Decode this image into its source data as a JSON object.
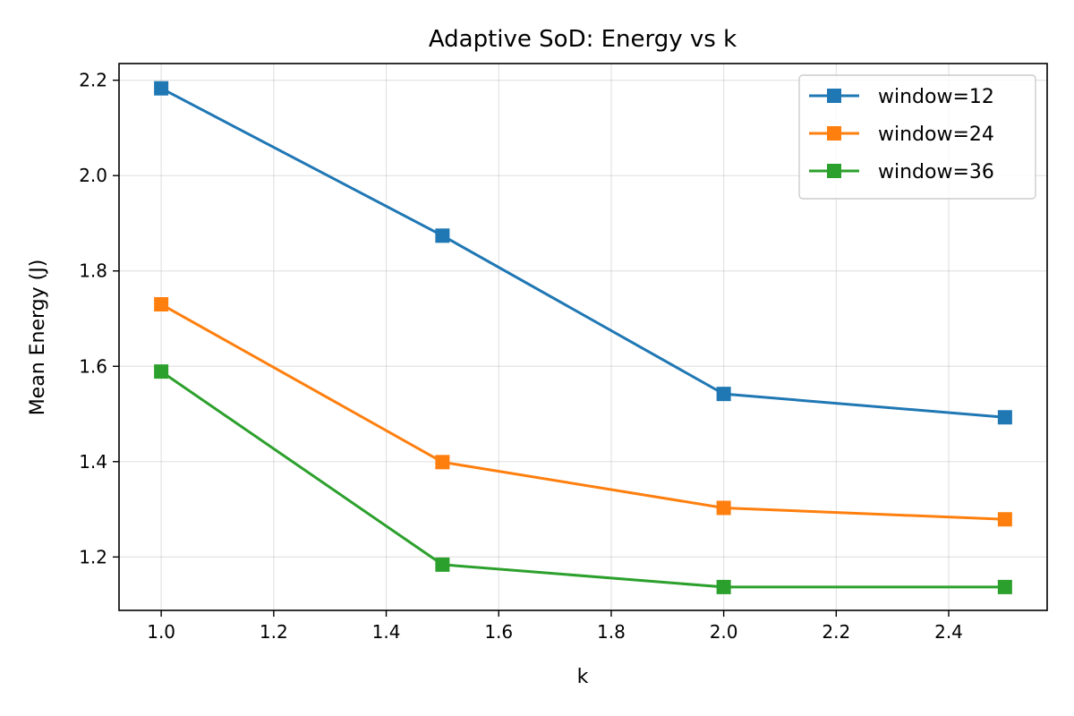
{
  "chart_data": {
    "type": "line",
    "title": "Adaptive SoD: Energy vs k",
    "xlabel": "k",
    "ylabel": "Mean Energy (J)",
    "x": [
      1.0,
      1.5,
      2.0,
      2.5
    ],
    "xlim": [
      0.925,
      2.575
    ],
    "ylim": [
      1.088,
      2.235
    ],
    "xticks": [
      "1.0",
      "1.2",
      "1.4",
      "1.6",
      "1.8",
      "2.0",
      "2.2",
      "2.4"
    ],
    "xtick_values": [
      1.0,
      1.2,
      1.4,
      1.6,
      1.8,
      2.0,
      2.2,
      2.4
    ],
    "yticks": [
      "1.2",
      "1.4",
      "1.6",
      "1.8",
      "2.0",
      "2.2"
    ],
    "ytick_values": [
      1.2,
      1.4,
      1.6,
      1.8,
      2.0,
      2.2
    ],
    "grid": true,
    "legend_position": "top-right",
    "marker": "square",
    "series": [
      {
        "name": "window=12",
        "color": "#1f77b4",
        "values": [
          2.183,
          1.874,
          1.542,
          1.493
        ]
      },
      {
        "name": "window=24",
        "color": "#ff7f0e",
        "values": [
          1.73,
          1.399,
          1.303,
          1.279
        ]
      },
      {
        "name": "window=36",
        "color": "#2ca02c",
        "values": [
          1.589,
          1.184,
          1.137,
          1.137
        ]
      }
    ]
  }
}
